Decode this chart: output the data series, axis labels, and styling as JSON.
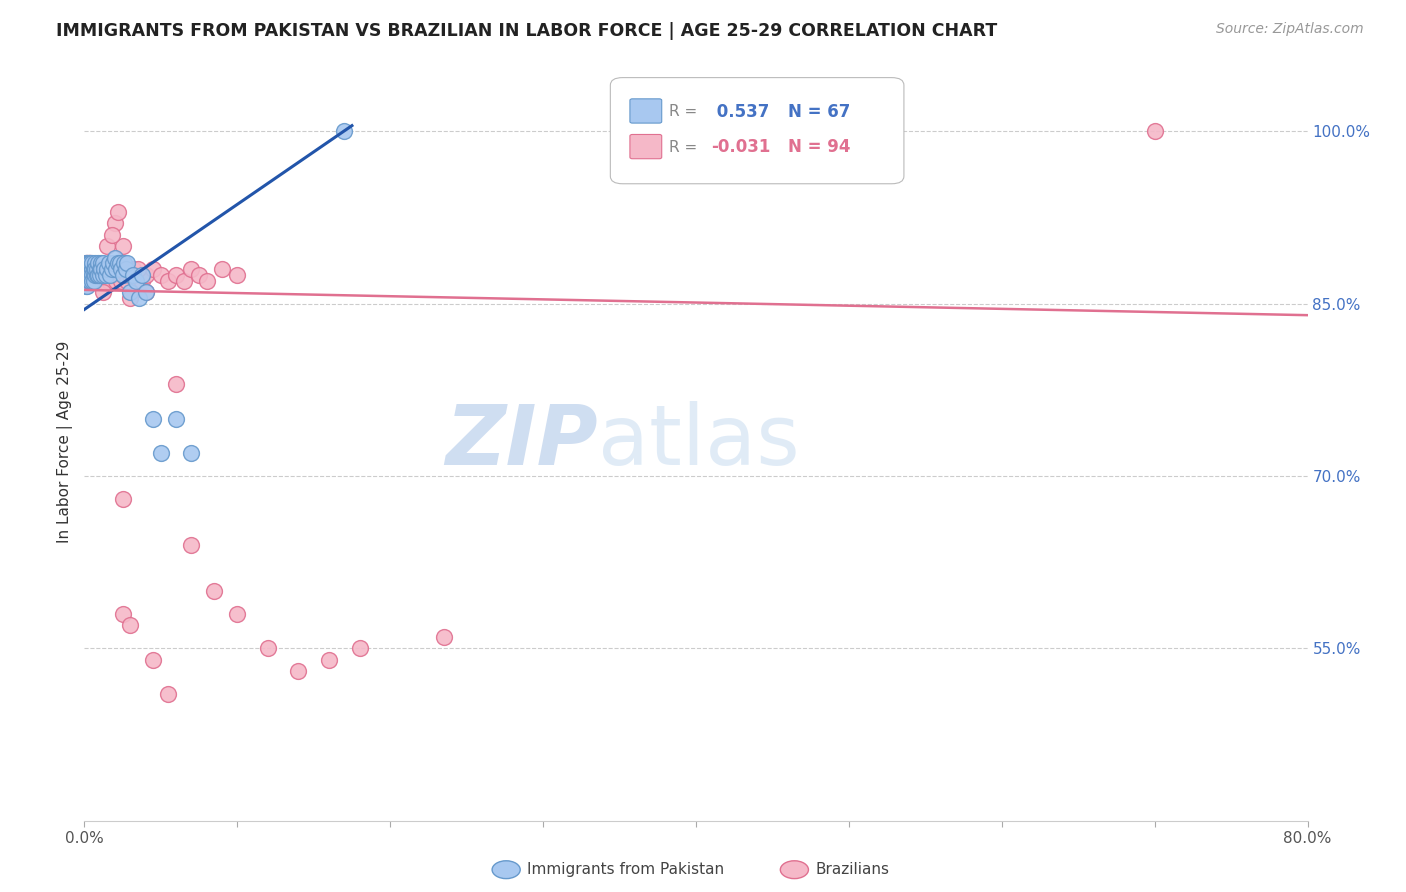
{
  "title": "IMMIGRANTS FROM PAKISTAN VS BRAZILIAN IN LABOR FORCE | AGE 25-29 CORRELATION CHART",
  "source": "Source: ZipAtlas.com",
  "ylabel": "In Labor Force | Age 25-29",
  "xlim": [
    0.0,
    0.8
  ],
  "ylim": [
    0.4,
    1.06
  ],
  "xtick_positions": [
    0.0,
    0.1,
    0.2,
    0.3,
    0.4,
    0.5,
    0.6,
    0.7,
    0.8
  ],
  "xticklabels": [
    "0.0%",
    "",
    "",
    "",
    "",
    "",
    "",
    "",
    "80.0%"
  ],
  "right_ytick_positions": [
    1.0,
    0.85,
    0.7,
    0.55
  ],
  "right_yticklabels": [
    "100.0%",
    "85.0%",
    "70.0%",
    "55.0%"
  ],
  "pakistan_color": "#A8C8F0",
  "pakistan_edge": "#6699CC",
  "brazil_color": "#F5B8C8",
  "brazil_edge": "#E07090",
  "trend_pakistan_color": "#2255AA",
  "trend_brazil_color": "#E07090",
  "pakistan_R": 0.537,
  "pakistan_N": 67,
  "brazil_R": -0.031,
  "brazil_N": 94,
  "legend_pakistan_label": "Immigrants from Pakistan",
  "legend_brazil_label": "Brazilians",
  "watermark_zip": "ZIP",
  "watermark_atlas": "atlas",
  "pakistan_x": [
    0.001,
    0.001,
    0.001,
    0.001,
    0.001,
    0.002,
    0.002,
    0.002,
    0.002,
    0.002,
    0.002,
    0.003,
    0.003,
    0.003,
    0.003,
    0.003,
    0.004,
    0.004,
    0.004,
    0.004,
    0.005,
    0.005,
    0.005,
    0.005,
    0.006,
    0.006,
    0.006,
    0.007,
    0.007,
    0.007,
    0.008,
    0.008,
    0.009,
    0.009,
    0.01,
    0.01,
    0.011,
    0.011,
    0.012,
    0.012,
    0.013,
    0.014,
    0.015,
    0.016,
    0.017,
    0.018,
    0.019,
    0.02,
    0.021,
    0.022,
    0.023,
    0.024,
    0.025,
    0.026,
    0.027,
    0.028,
    0.03,
    0.032,
    0.034,
    0.036,
    0.038,
    0.04,
    0.045,
    0.05,
    0.06,
    0.07,
    0.17
  ],
  "pakistan_y": [
    0.87,
    0.875,
    0.88,
    0.865,
    0.885,
    0.875,
    0.88,
    0.87,
    0.885,
    0.875,
    0.865,
    0.88,
    0.875,
    0.87,
    0.885,
    0.875,
    0.88,
    0.87,
    0.875,
    0.885,
    0.88,
    0.875,
    0.87,
    0.885,
    0.88,
    0.875,
    0.87,
    0.885,
    0.875,
    0.88,
    0.875,
    0.88,
    0.875,
    0.885,
    0.88,
    0.875,
    0.885,
    0.88,
    0.875,
    0.885,
    0.88,
    0.875,
    0.88,
    0.885,
    0.875,
    0.88,
    0.885,
    0.89,
    0.88,
    0.885,
    0.885,
    0.88,
    0.875,
    0.885,
    0.88,
    0.885,
    0.86,
    0.875,
    0.87,
    0.855,
    0.875,
    0.86,
    0.75,
    0.72,
    0.75,
    0.72,
    1.0
  ],
  "brazil_x": [
    0.001,
    0.001,
    0.001,
    0.001,
    0.002,
    0.002,
    0.002,
    0.002,
    0.002,
    0.003,
    0.003,
    0.003,
    0.003,
    0.003,
    0.004,
    0.004,
    0.004,
    0.004,
    0.005,
    0.005,
    0.005,
    0.005,
    0.006,
    0.006,
    0.006,
    0.007,
    0.007,
    0.007,
    0.008,
    0.008,
    0.009,
    0.009,
    0.01,
    0.01,
    0.011,
    0.011,
    0.012,
    0.012,
    0.013,
    0.014,
    0.015,
    0.015,
    0.016,
    0.017,
    0.018,
    0.019,
    0.02,
    0.021,
    0.022,
    0.023,
    0.024,
    0.025,
    0.026,
    0.027,
    0.028,
    0.03,
    0.032,
    0.035,
    0.038,
    0.04,
    0.045,
    0.05,
    0.055,
    0.06,
    0.065,
    0.07,
    0.075,
    0.08,
    0.09,
    0.1,
    0.015,
    0.02,
    0.025,
    0.03,
    0.012,
    0.018,
    0.022,
    0.035,
    0.04,
    0.06,
    0.025,
    0.03,
    0.045,
    0.055,
    0.07,
    0.085,
    0.1,
    0.12,
    0.14,
    0.16,
    0.18,
    0.7,
    0.025,
    0.235
  ],
  "brazil_y": [
    0.875,
    0.88,
    0.87,
    0.885,
    0.875,
    0.88,
    0.87,
    0.885,
    0.875,
    0.88,
    0.87,
    0.875,
    0.885,
    0.87,
    0.88,
    0.875,
    0.87,
    0.885,
    0.875,
    0.88,
    0.87,
    0.875,
    0.88,
    0.875,
    0.87,
    0.88,
    0.875,
    0.87,
    0.875,
    0.88,
    0.875,
    0.87,
    0.875,
    0.88,
    0.875,
    0.87,
    0.88,
    0.875,
    0.87,
    0.875,
    0.88,
    0.875,
    0.87,
    0.88,
    0.875,
    0.88,
    0.875,
    0.87,
    0.88,
    0.875,
    0.87,
    0.875,
    0.88,
    0.875,
    0.87,
    0.875,
    0.88,
    0.875,
    0.87,
    0.875,
    0.88,
    0.875,
    0.87,
    0.875,
    0.87,
    0.88,
    0.875,
    0.87,
    0.88,
    0.875,
    0.9,
    0.92,
    0.9,
    0.855,
    0.86,
    0.91,
    0.93,
    0.88,
    0.86,
    0.78,
    0.58,
    0.57,
    0.54,
    0.51,
    0.64,
    0.6,
    0.58,
    0.55,
    0.53,
    0.54,
    0.55,
    1.0,
    0.68,
    0.56
  ],
  "pak_trend_x": [
    0.0,
    0.175
  ],
  "pak_trend_y": [
    0.845,
    1.005
  ],
  "bra_trend_x": [
    0.0,
    0.8
  ],
  "bra_trend_y": [
    0.862,
    0.84
  ]
}
